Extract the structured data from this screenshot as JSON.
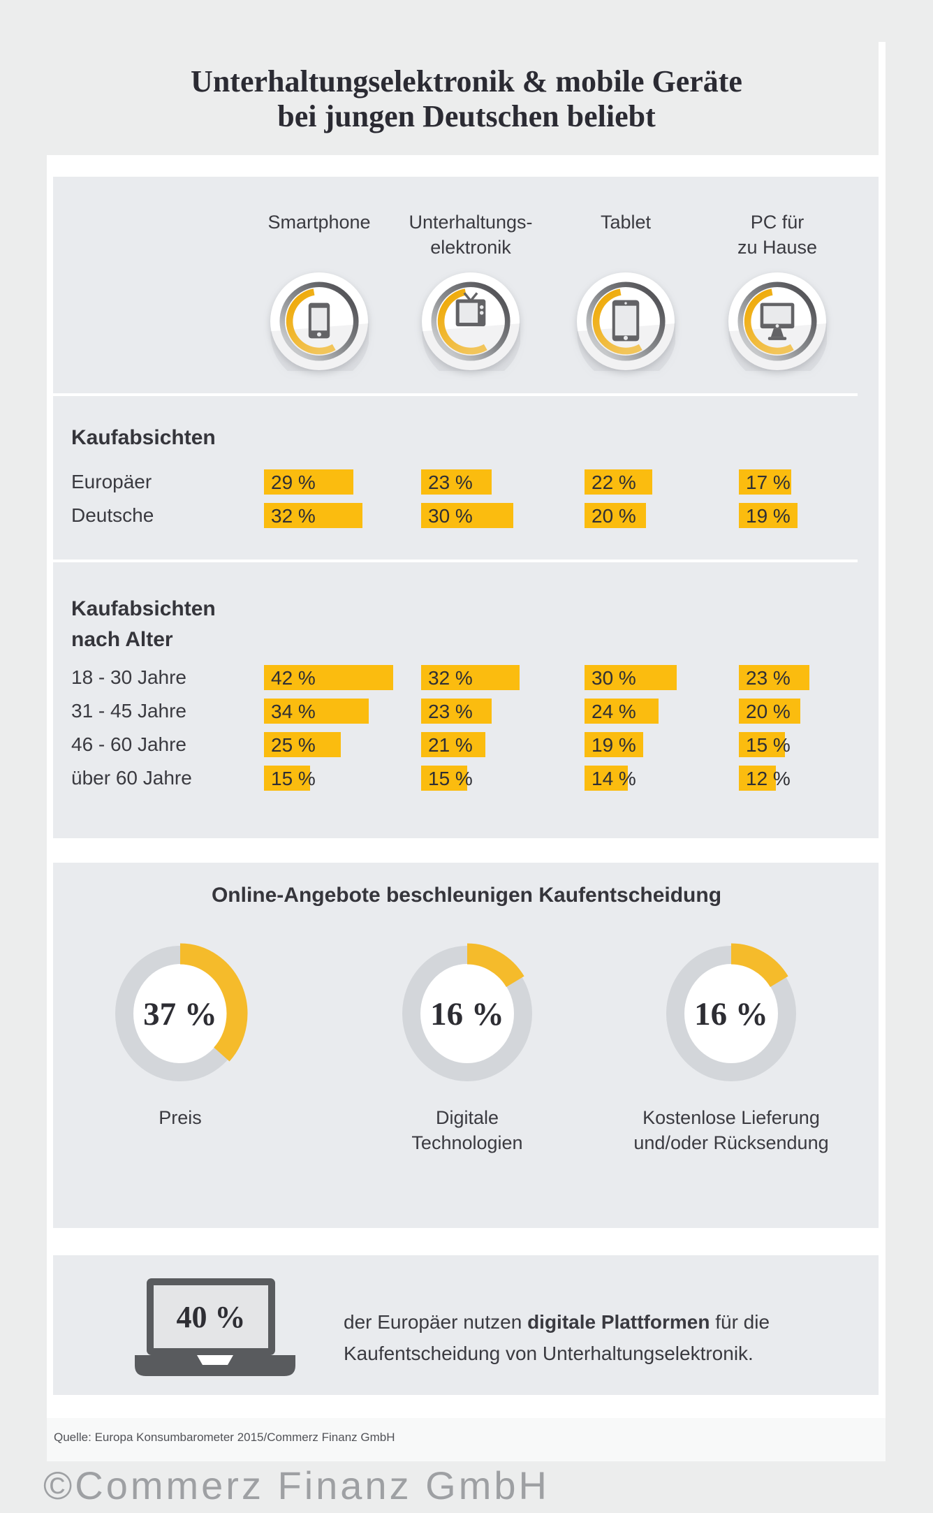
{
  "page": {
    "title_line1": "Unterhaltungselektronik & mobile Geräte",
    "title_line2": "bei jungen Deutschen beliebt",
    "source": "Quelle: Europa Konsumbarometer 2015/Commerz Finanz GmbH",
    "watermark": "©Commerz Finanz GmbH"
  },
  "columns": [
    {
      "label_lines": [
        "Smartphone"
      ],
      "icon": "smartphone-icon"
    },
    {
      "label_lines": [
        "Unterhaltungs-",
        "elektronik"
      ],
      "icon": "tv-icon"
    },
    {
      "label_lines": [
        "Tablet"
      ],
      "icon": "tablet-icon"
    },
    {
      "label_lines": [
        "PC für",
        "zu Hause"
      ],
      "icon": "desktop-icon"
    }
  ],
  "sections": {
    "intent_by_age_heading_lines": [
      "Kaufabsichten",
      "nach Alter"
    ],
    "platforms_statement": {
      "value_label": "40 %",
      "line1_pre": "der Europäer nutzen ",
      "line1_bold": "digitale Plattformen",
      "line1_post": " für die",
      "line2": "Kaufentscheidung von Unterhaltungselektronik."
    }
  },
  "chart_data": [
    {
      "type": "bar",
      "title": "Kaufabsichten",
      "unit": "%",
      "categories": [
        "Smartphone",
        "Unterhaltungselektronik",
        "Tablet",
        "PC für zu Hause"
      ],
      "series": [
        {
          "name": "Europäer",
          "values": [
            29,
            23,
            22,
            17
          ]
        },
        {
          "name": "Deutsche",
          "values": [
            32,
            30,
            20,
            19
          ]
        }
      ],
      "layout_hint": "horizontal yellow bars, length proportional to percent, value printed on bar"
    },
    {
      "type": "bar",
      "title": "Kaufabsichten nach Alter",
      "unit": "%",
      "categories": [
        "Smartphone",
        "Unterhaltungselektronik",
        "Tablet",
        "PC für zu Hause"
      ],
      "series": [
        {
          "name": "18 - 30 Jahre",
          "values": [
            42,
            32,
            30,
            23
          ]
        },
        {
          "name": "31 - 45 Jahre",
          "values": [
            34,
            23,
            24,
            20
          ]
        },
        {
          "name": "46 - 60 Jahre",
          "values": [
            25,
            21,
            19,
            15
          ]
        },
        {
          "name": "über 60 Jahre",
          "values": [
            15,
            15,
            14,
            12
          ]
        }
      ],
      "layout_hint": "horizontal yellow bars, length proportional to percent, value printed on bar"
    },
    {
      "type": "pie",
      "title": "Online-Angebote beschleunigen Kaufentscheidung",
      "unit": "%",
      "slices": [
        {
          "value": 37,
          "label_lines": [
            "Preis"
          ]
        },
        {
          "value": 16,
          "label_lines": [
            "Digitale",
            "Technologien"
          ]
        },
        {
          "value": 16,
          "label_lines": [
            "Kostenlose Lieferung",
            "und/oder Rücksendung"
          ]
        }
      ],
      "layout_hint": "donut charts, yellow arc clockwise from 12 o'clock on light gray track, value centered"
    },
    {
      "type": "pictogram",
      "value": 40,
      "unit": "%",
      "icon": "laptop-icon",
      "text": "der Europäer nutzen digitale Plattformen für die Kaufentscheidung von Unterhaltungselektronik."
    }
  ],
  "colors": {
    "background": "#ECEDED",
    "panel": "#E9EBEE",
    "accent_yellow": "#FBBC0F",
    "donut_yellow": "#F5BB2B",
    "donut_track": "#D3D6DA",
    "dark_text": "#35353B",
    "glyph_gray": "#636366",
    "laptop_gray": "#595B5E",
    "watermark_gray": "#9EA0A3"
  }
}
